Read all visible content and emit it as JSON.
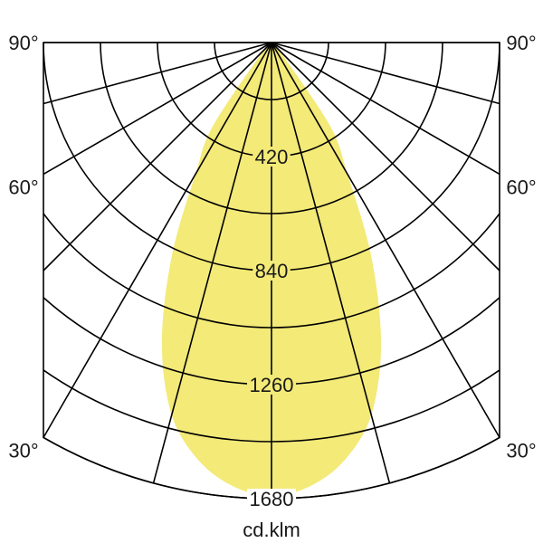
{
  "chart_data": {
    "type": "polar",
    "unit_label": "cd.klm",
    "radial_ticks": [
      420,
      840,
      1260,
      1680
    ],
    "radial_grid_step": 210,
    "radial_max": 1680,
    "angle_grid_step_deg": 15,
    "angle_labels": [
      {
        "deg": 90,
        "text": "90°"
      },
      {
        "deg": 60,
        "text": "60°"
      },
      {
        "deg": 30,
        "text": "30°"
      }
    ],
    "fill_color": "#f3ea78",
    "grid_color": "#000000",
    "series": [
      {
        "angles_deg": [
          0,
          5,
          10,
          15,
          20,
          25,
          30,
          35,
          40,
          45,
          90
        ],
        "values": [
          1670,
          1640,
          1560,
          1420,
          1180,
          870,
          560,
          380,
          80,
          0,
          0
        ]
      }
    ]
  }
}
